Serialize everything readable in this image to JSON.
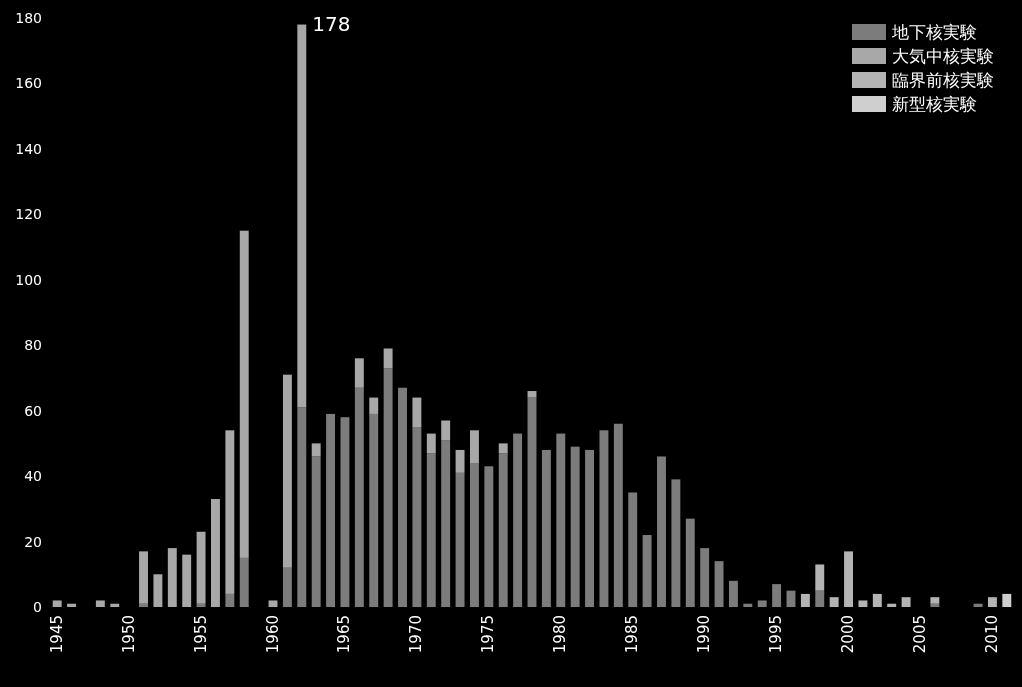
{
  "chart_data": {
    "type": "bar",
    "stacked": true,
    "legend": "top right",
    "categories": [
      "1945",
      null,
      null,
      null,
      null,
      "1950",
      null,
      null,
      null,
      null,
      "1955",
      null,
      null,
      null,
      null,
      "1960",
      null,
      null,
      null,
      null,
      "1965",
      null,
      null,
      null,
      null,
      "1970",
      null,
      null,
      null,
      null,
      "1975",
      null,
      null,
      null,
      null,
      "1980",
      null,
      null,
      null,
      null,
      "1985",
      null,
      null,
      null,
      null,
      "1990",
      null,
      null,
      null,
      null,
      "1995",
      null,
      null,
      null,
      null,
      "2000",
      null,
      null,
      null,
      null,
      "2005",
      null,
      null,
      null,
      null,
      "2010",
      null
    ],
    "ylim": [
      0,
      180
    ],
    "yticks": [
      0,
      20,
      40,
      60,
      80,
      100,
      120,
      140,
      160,
      180
    ],
    "series": [
      {
        "name": "地下核実験",
        "color": "#7c7c7c",
        "values": [
          null,
          null,
          null,
          null,
          null,
          null,
          1,
          null,
          null,
          null,
          1,
          null,
          4,
          15,
          null,
          null,
          12,
          61,
          46,
          59,
          58,
          67,
          59,
          73,
          67,
          55,
          47,
          51,
          41,
          44,
          43,
          47,
          53,
          64,
          48,
          53,
          49,
          48,
          54,
          56,
          35,
          22,
          46,
          39,
          27,
          18,
          14,
          8,
          1,
          2,
          7,
          5,
          null,
          5,
          null,
          null,
          null,
          null,
          null,
          null,
          null,
          1,
          null,
          null,
          1,
          null,
          null
        ]
      },
      {
        "name": "大気中核実験",
        "color": "#a8a8a8",
        "values": [
          2,
          1,
          null,
          2,
          1,
          null,
          16,
          10,
          18,
          16,
          22,
          33,
          50,
          100,
          null,
          2,
          59,
          117,
          4,
          null,
          null,
          9,
          5,
          6,
          null,
          9,
          6,
          6,
          7,
          10,
          null,
          3,
          null,
          2,
          null,
          null,
          null,
          null,
          null,
          null,
          null,
          null,
          null,
          null,
          null,
          null,
          null,
          null,
          null,
          null,
          null,
          null,
          null,
          null,
          null,
          null,
          null,
          null,
          null,
          null,
          null,
          null,
          null,
          null,
          null,
          null,
          null
        ]
      },
      {
        "name": "臨界前核実験",
        "color": "#b4b4b4",
        "values": [
          null,
          null,
          null,
          null,
          null,
          null,
          null,
          null,
          null,
          null,
          null,
          null,
          null,
          null,
          null,
          null,
          null,
          null,
          null,
          null,
          null,
          null,
          null,
          null,
          null,
          null,
          null,
          null,
          null,
          null,
          null,
          null,
          null,
          null,
          null,
          null,
          null,
          null,
          null,
          null,
          null,
          null,
          null,
          null,
          null,
          null,
          null,
          null,
          null,
          null,
          null,
          null,
          4,
          8,
          3,
          17,
          2,
          4,
          1,
          3,
          null,
          2,
          null,
          null,
          null,
          3,
          null
        ]
      },
      {
        "name": "新型核実験",
        "color": "#cfcfcf",
        "values": [
          null,
          null,
          null,
          null,
          null,
          null,
          null,
          null,
          null,
          null,
          null,
          null,
          null,
          null,
          null,
          null,
          null,
          null,
          null,
          null,
          null,
          null,
          null,
          null,
          null,
          null,
          null,
          null,
          null,
          null,
          null,
          null,
          null,
          null,
          null,
          null,
          null,
          null,
          null,
          null,
          null,
          null,
          null,
          null,
          null,
          null,
          null,
          null,
          null,
          null,
          null,
          null,
          null,
          null,
          null,
          null,
          null,
          null,
          null,
          null,
          null,
          null,
          null,
          null,
          null,
          null,
          4
        ]
      }
    ],
    "totals": [
      null,
      null,
      null,
      null,
      null,
      null,
      null,
      null,
      null,
      null,
      null,
      null,
      null,
      null,
      null,
      null,
      null,
      "178",
      null,
      null,
      null,
      null,
      null,
      null,
      null,
      null,
      null,
      null,
      null,
      null,
      null,
      null,
      null,
      null,
      null,
      null,
      null,
      null,
      null,
      null,
      null,
      null,
      null,
      null,
      null,
      null,
      null,
      null,
      null,
      null,
      null,
      null,
      null,
      null,
      null,
      null,
      null,
      null,
      null,
      null,
      null,
      null,
      null,
      null,
      null,
      null,
      null
    ]
  }
}
